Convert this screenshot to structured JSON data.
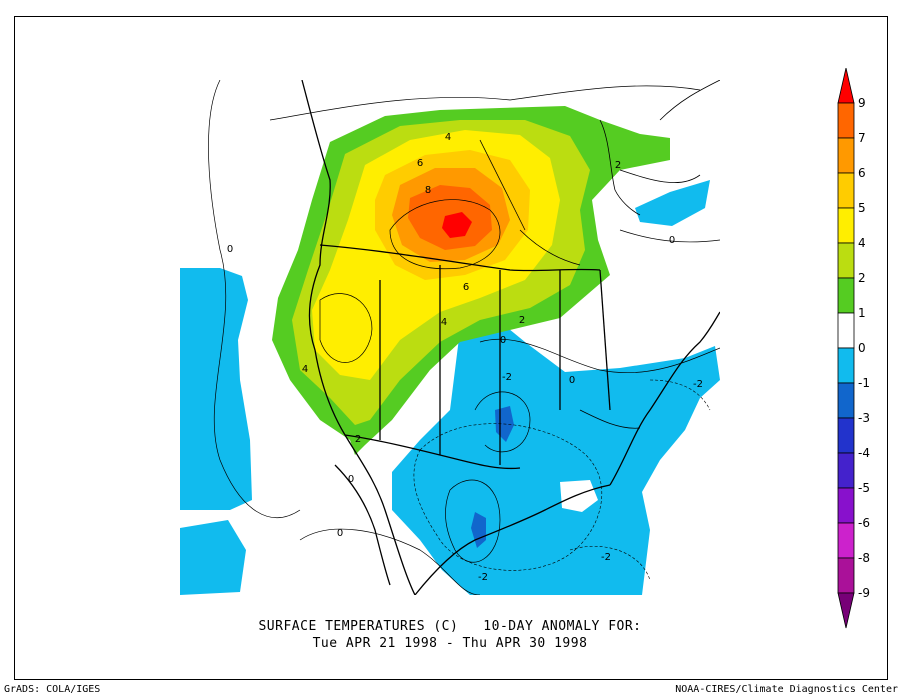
{
  "title": {
    "line1": "SURFACE TEMPERATURES (C)   10-DAY ANOMALY FOR:",
    "line2": "Tue APR 21 1998 - Thu APR 30 1998"
  },
  "footer": {
    "left": "GrADS: COLA/IGES",
    "right": "NOAA-CIRES/Climate Diagnostics Center"
  },
  "colorbar": {
    "levels": [
      "9",
      "7",
      "6",
      "5",
      "4",
      "2",
      "1",
      "0",
      "-1",
      "-3",
      "-4",
      "-5",
      "-6",
      "-8",
      "-9"
    ],
    "colors": [
      "#ff0000",
      "#ff6600",
      "#ff9900",
      "#ffcc00",
      "#ffee00",
      "#bbdd11",
      "#55cc22",
      "#ffffff",
      "#11bbee",
      "#1166cc",
      "#2233cc",
      "#4422cc",
      "#8811cc",
      "#cc22cc",
      "#aa1199",
      "#770077"
    ]
  },
  "contour_labels": [
    "4",
    "6",
    "8",
    "6",
    "4",
    "2",
    "4",
    "2",
    "0",
    "0",
    "2",
    "-2",
    "0",
    "-2",
    "-2",
    "-2",
    "0",
    "0",
    "0"
  ]
}
